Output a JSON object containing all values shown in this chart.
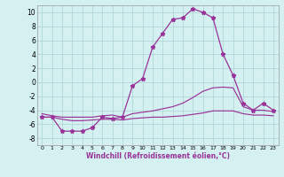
{
  "xlabel": "Windchill (Refroidissement éolien,°C)",
  "hours": [
    0,
    1,
    2,
    3,
    4,
    5,
    6,
    7,
    8,
    9,
    10,
    11,
    12,
    13,
    14,
    15,
    16,
    17,
    18,
    19,
    20,
    21,
    22,
    23
  ],
  "wc_line": [
    -5,
    -5,
    -7,
    -7,
    -7,
    -6.5,
    -5,
    -5.2,
    -5,
    -0.5,
    0.5,
    5,
    7,
    9,
    9.2,
    10.5,
    10,
    9.2,
    4,
    1,
    -3,
    -4,
    -3,
    -4
  ],
  "temp_line": [
    -4.5,
    -4.8,
    -5,
    -5,
    -5,
    -5,
    -4.8,
    -4.7,
    -5,
    -4.5,
    -4.3,
    -4.1,
    -3.8,
    -3.5,
    -3.0,
    -2.2,
    -1.3,
    -0.8,
    -0.7,
    -0.8,
    -3.5,
    -4.0,
    -4.0,
    -4.2
  ],
  "flat_line": [
    -5,
    -5,
    -5.3,
    -5.5,
    -5.5,
    -5.4,
    -5.3,
    -5.3,
    -5.4,
    -5.2,
    -5.1,
    -5.0,
    -5.0,
    -4.9,
    -4.8,
    -4.6,
    -4.4,
    -4.1,
    -4.1,
    -4.1,
    -4.5,
    -4.7,
    -4.7,
    -4.8
  ],
  "line_color": "#993399",
  "bg_color": "#d4f0f0",
  "grid_color": "#b0d8d8",
  "ylim": [
    -9,
    11
  ],
  "yticks": [
    -8,
    -6,
    -4,
    -2,
    0,
    2,
    4,
    6,
    8,
    10
  ],
  "xticks": [
    0,
    1,
    2,
    3,
    4,
    5,
    6,
    7,
    8,
    9,
    10,
    11,
    12,
    13,
    14,
    15,
    16,
    17,
    18,
    19,
    20,
    21,
    22,
    23
  ]
}
